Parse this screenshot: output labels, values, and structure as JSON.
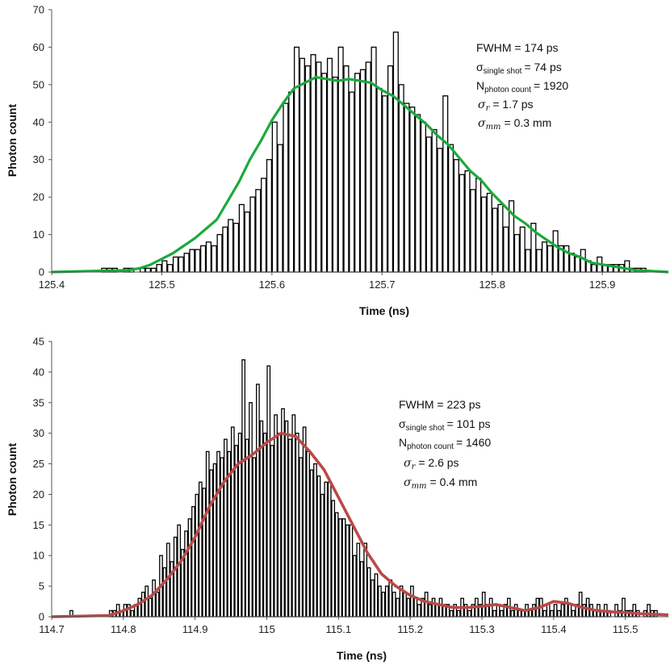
{
  "chart_data": [
    {
      "type": "bar",
      "xlabel": "Time (ns)",
      "ylabel": "Photon count",
      "xlim": [
        125.4,
        125.96
      ],
      "ylim": [
        0,
        70
      ],
      "xticks": [
        "125.4",
        "125.5",
        "125.6",
        "125.7",
        "125.8",
        "125.9"
      ],
      "yticks": [
        "0",
        "10",
        "20",
        "30",
        "40",
        "50",
        "60",
        "70"
      ],
      "bin_start": 125.445,
      "bin_width": 0.005,
      "counts": [
        1,
        1,
        1,
        0,
        1,
        1,
        0,
        1,
        1,
        1,
        2,
        3,
        2,
        4,
        4,
        5,
        6,
        6,
        7,
        8,
        7,
        10,
        12,
        14,
        13,
        18,
        16,
        20,
        22,
        25,
        30,
        40,
        34,
        45,
        48,
        60,
        57,
        55,
        58,
        56,
        53,
        57,
        52,
        60,
        55,
        48,
        53,
        54,
        56,
        60,
        49,
        47,
        55,
        64,
        50,
        45,
        44,
        42,
        40,
        36,
        38,
        33,
        47,
        34,
        30,
        26,
        27,
        22,
        25,
        20,
        21,
        17,
        18,
        12,
        19,
        10,
        12,
        6,
        13,
        6,
        8,
        7,
        11,
        7,
        7,
        5,
        4,
        6,
        3,
        2,
        4,
        2,
        2,
        2,
        2,
        3,
        1,
        1,
        1
      ],
      "series": [
        {
          "name": "",
          "color": "#1aaa3c",
          "x": [
            125.4,
            125.47,
            125.48,
            125.49,
            125.5,
            125.51,
            125.52,
            125.53,
            125.54,
            125.55,
            125.56,
            125.57,
            125.58,
            125.59,
            125.6,
            125.61,
            125.62,
            125.63,
            125.64,
            125.65,
            125.66,
            125.67,
            125.68,
            125.69,
            125.7,
            125.71,
            125.72,
            125.73,
            125.74,
            125.75,
            125.76,
            125.77,
            125.78,
            125.79,
            125.8,
            125.81,
            125.82,
            125.83,
            125.84,
            125.85,
            125.86,
            125.87,
            125.88,
            125.89,
            125.9,
            125.91,
            125.92,
            125.93,
            125.96
          ],
          "y": [
            0,
            0.5,
            1,
            2,
            3.5,
            5,
            7,
            9,
            11.5,
            14,
            19,
            24,
            30,
            35,
            40.5,
            45,
            49,
            50.5,
            52,
            51.5,
            51,
            51.5,
            51,
            50.5,
            48.5,
            47,
            44.5,
            42,
            39.5,
            36.5,
            34,
            30.5,
            27,
            24.5,
            21,
            18,
            15,
            13,
            10.5,
            8.5,
            6.5,
            5,
            4,
            2.5,
            2,
            1.5,
            1,
            0.5,
            0
          ]
        }
      ],
      "annotations": [
        "FWHM = 174 ps",
        "single shot",
        "= 74 ps",
        "photon count",
        "= 1920",
        "= 1.7 ps",
        "= 0.3 mm"
      ]
    },
    {
      "type": "bar",
      "xlabel": "Time (ns)",
      "ylabel": "Photon count",
      "xlim": [
        114.7,
        115.56
      ],
      "ylim": [
        0,
        45
      ],
      "xticks": [
        "114.7",
        "114.8",
        "114.9",
        "115",
        "115.1",
        "115.2",
        "115.3",
        "115.4",
        "115.5"
      ],
      "yticks": [
        "0",
        "5",
        "10",
        "15",
        "20",
        "25",
        "30",
        "35",
        "40",
        "45"
      ],
      "bin_start": 114.725,
      "bin_width": 0.005,
      "counts": [
        1,
        0,
        0,
        0,
        0,
        0,
        0,
        0,
        0,
        0,
        0,
        1,
        1,
        2,
        1,
        2,
        2,
        1,
        2,
        3,
        4,
        5,
        3,
        6,
        4,
        10,
        8,
        12,
        9,
        13,
        15,
        11,
        14,
        16,
        18,
        20,
        22,
        21,
        27,
        24,
        25,
        27,
        26,
        29,
        27,
        31,
        28,
        30,
        42,
        29,
        35,
        26,
        38,
        32,
        30,
        41,
        28,
        33,
        30,
        34,
        32,
        29,
        33,
        30,
        26,
        31,
        27,
        24,
        25,
        23,
        20,
        22,
        22,
        19,
        17,
        16,
        16,
        15,
        15,
        10,
        12,
        9,
        12,
        8,
        6,
        7,
        5,
        4,
        5,
        6,
        4,
        3,
        5,
        4,
        3,
        5,
        3,
        2,
        3,
        4,
        2,
        3,
        2,
        3,
        2,
        2,
        1,
        2,
        1,
        3,
        2,
        1,
        2,
        3,
        2,
        4,
        2,
        3,
        1,
        2,
        1,
        2,
        3,
        1,
        2,
        1,
        1,
        2,
        1,
        2,
        3,
        3,
        1,
        2,
        1,
        2,
        1,
        2,
        3,
        2,
        1,
        2,
        4,
        2,
        3,
        2,
        1,
        2,
        1,
        2,
        1,
        0,
        2,
        1,
        3,
        1,
        1,
        2,
        1,
        0,
        1,
        2,
        1,
        1
      ],
      "series": [
        {
          "name": "",
          "color": "#b94a48",
          "x": [
            114.7,
            114.78,
            114.8,
            114.82,
            114.84,
            114.86,
            114.88,
            114.9,
            114.92,
            114.94,
            114.96,
            114.98,
            115.0,
            115.02,
            115.04,
            115.06,
            115.08,
            115.1,
            115.12,
            115.14,
            115.16,
            115.18,
            115.2,
            115.22,
            115.24,
            115.26,
            115.28,
            115.3,
            115.32,
            115.34,
            115.36,
            115.38,
            115.4,
            115.42,
            115.44,
            115.46,
            115.48,
            115.5,
            115.52,
            115.56
          ],
          "y": [
            0,
            0.2,
            1,
            2,
            3.5,
            6,
            9,
            13,
            18,
            22,
            25,
            26.5,
            28.5,
            30,
            29.5,
            27,
            24,
            19.5,
            15,
            10.5,
            7,
            5,
            3.5,
            2.5,
            2,
            1.5,
            1.5,
            1.7,
            2,
            1.5,
            1,
            1.5,
            2.5,
            2.2,
            1.5,
            1,
            0.8,
            0.7,
            0.5,
            0.3
          ]
        }
      ],
      "annotations": [
        "FWHM = 223 ps",
        "single shot",
        "= 101 ps",
        "photon count",
        "= 1460",
        "= 2.6 ps",
        "= 0.4 mm"
      ]
    }
  ]
}
